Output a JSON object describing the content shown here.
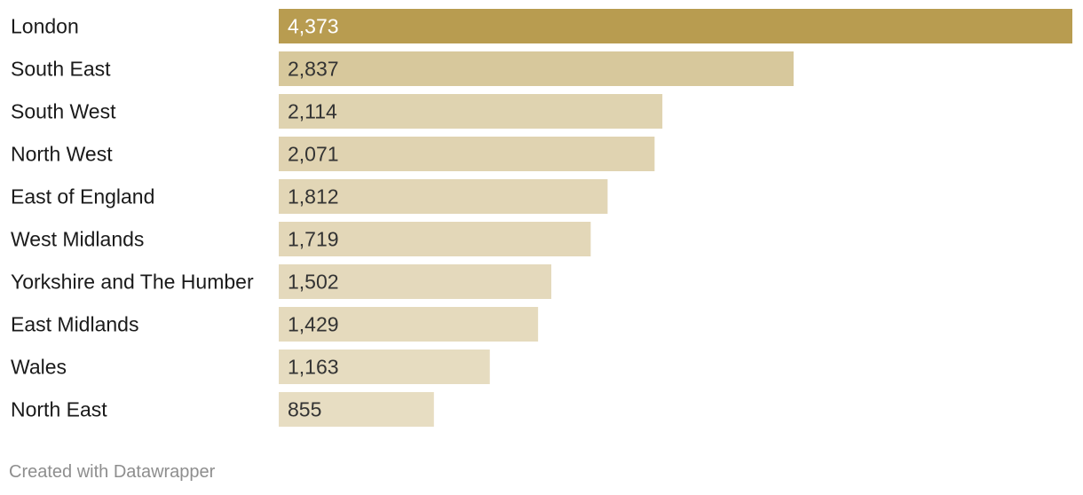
{
  "chart_data": {
    "type": "bar",
    "orientation": "horizontal",
    "categories": [
      "London",
      "South East",
      "South West",
      "North West",
      "East of England",
      "West Midlands",
      "Yorkshire and The Humber",
      "East Midlands",
      "Wales",
      "North East"
    ],
    "values": [
      4373,
      2837,
      2114,
      2071,
      1812,
      1719,
      1502,
      1429,
      1163,
      855
    ],
    "value_labels": [
      "4,373",
      "2,837",
      "2,114",
      "2,071",
      "1,812",
      "1,719",
      "1,502",
      "1,429",
      "1,163",
      "855"
    ],
    "xlim": [
      0,
      4373
    ],
    "grid": false,
    "colors": {
      "max": "#b89c50",
      "min": "#e7ddc2",
      "label_on_dark": "#ffffff",
      "label_on_light": "#333333"
    }
  },
  "footer": {
    "credit": "Created with Datawrapper"
  }
}
